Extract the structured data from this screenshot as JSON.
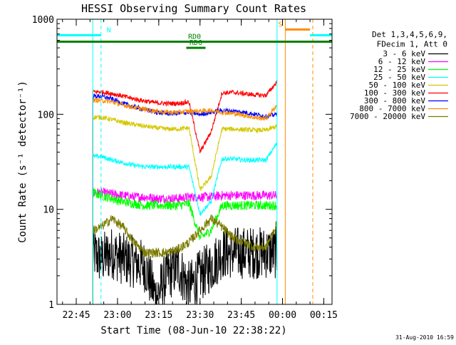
{
  "chart_data": {
    "type": "line",
    "title": "HESSI Observing Summary Count Rates",
    "xlabel": "Start Time (08-Jun-10 22:38:22)",
    "ylabel": "Count Rate (s⁻¹ detector⁻¹)",
    "yscale": "log",
    "ylim": [
      1,
      1000
    ],
    "xlim_minutes": [
      0,
      100
    ],
    "x_ticks": [
      {
        "label": "22:45",
        "minute": 7
      },
      {
        "label": "23:00",
        "minute": 22
      },
      {
        "label": "23:15",
        "minute": 37
      },
      {
        "label": "23:30",
        "minute": 52
      },
      {
        "label": "23:45",
        "minute": 67
      },
      {
        "label": "00:00",
        "minute": 82
      },
      {
        "label": "00:15",
        "minute": 97
      }
    ],
    "y_ticks": [
      {
        "label": "1",
        "value": 1
      },
      {
        "label": "10",
        "value": 10
      },
      {
        "label": "100",
        "value": 100
      },
      {
        "label": "1000",
        "value": 1000
      }
    ],
    "legend": {
      "position": "right",
      "header": [
        "Det 1,3,4,5,6,9,",
        "FDecim 1, Att 0"
      ],
      "entries": [
        {
          "label": "3 - 6 keV",
          "color": "#000000"
        },
        {
          "label": "6 - 12 keV",
          "color": "#ff00ff"
        },
        {
          "label": "12 - 25 keV",
          "color": "#00ff00"
        },
        {
          "label": "25 - 50 keV",
          "color": "#00ffff"
        },
        {
          "label": "50 - 100 keV",
          "color": "#d4c800"
        },
        {
          "label": "100 - 300 keV",
          "color": "#ff0000"
        },
        {
          "label": "300 - 800 keV",
          "color": "#0000ff"
        },
        {
          "label": "800 - 7000 keV",
          "color": "#ff8c00"
        },
        {
          "label": "7000 - 20000 keV",
          "color": "#7b7b00"
        }
      ]
    },
    "flag_bars": [
      {
        "label": "N",
        "color": "#00ffff",
        "value": 680,
        "segments": [
          [
            0,
            16
          ],
          [
            92,
            100
          ]
        ]
      },
      {
        "label": "S",
        "color": "#ff8c00",
        "value": 780,
        "segments": [
          [
            83,
            92
          ]
        ]
      },
      {
        "label": "RD0",
        "color": "#008000",
        "value": 580,
        "segments": [
          [
            0,
            100
          ]
        ]
      },
      {
        "label": "RD6",
        "color": "#008000",
        "value": 500,
        "segments": [
          [
            47,
            54
          ]
        ]
      }
    ],
    "vertical_markers": [
      {
        "minute": 13,
        "color": "#00ffff",
        "style": "solid"
      },
      {
        "minute": 16,
        "color": "#00ffff",
        "style": "dashed"
      },
      {
        "minute": 80,
        "color": "#00ffff",
        "style": "solid"
      },
      {
        "minute": 83,
        "color": "#ff8c00",
        "style": "solid"
      },
      {
        "minute": 93,
        "color": "#ff8c00",
        "style": "dashed"
      },
      {
        "minute": 100,
        "color": "#00ffff",
        "style": "dashed"
      }
    ],
    "series": [
      {
        "name": "3 - 6 keV",
        "color": "#000000",
        "x": [
          13,
          16,
          20,
          24,
          28,
          32,
          36,
          40,
          44,
          48,
          52,
          56,
          60,
          64,
          68,
          72,
          76,
          80
        ],
        "y": [
          3.5,
          3,
          3.5,
          3,
          2.8,
          2.5,
          1.2,
          2,
          2.5,
          1.5,
          2,
          2.5,
          3.5,
          3.5,
          3.5,
          3.5,
          3.5,
          3.5
        ]
      },
      {
        "name": "6 - 12 keV",
        "color": "#ff00ff",
        "x": [
          13,
          16,
          20,
          24,
          28,
          32,
          36,
          40,
          44,
          48,
          52,
          56,
          60,
          64,
          68,
          72,
          76,
          80
        ],
        "y": [
          15,
          15,
          14.5,
          14,
          13.5,
          13.5,
          13,
          13,
          13,
          13.5,
          13.5,
          13.5,
          14,
          14,
          14,
          14,
          14,
          14
        ]
      },
      {
        "name": "12 - 25 keV",
        "color": "#00ff00",
        "x": [
          13,
          16,
          20,
          24,
          28,
          32,
          36,
          40,
          44,
          48,
          52,
          56,
          60,
          64,
          68,
          72,
          76,
          80
        ],
        "y": [
          15,
          14,
          13,
          12,
          11.5,
          11,
          11,
          11,
          11,
          11.5,
          5,
          6,
          11,
          11,
          11,
          11,
          11,
          11
        ]
      },
      {
        "name": "25 - 50 keV",
        "color": "#00ffff",
        "x": [
          13,
          16,
          20,
          24,
          28,
          32,
          36,
          40,
          44,
          48,
          52,
          56,
          60,
          64,
          68,
          72,
          76,
          80
        ],
        "y": [
          36,
          36,
          33,
          31,
          29,
          28,
          28,
          28,
          28,
          28,
          9,
          12,
          34,
          34,
          33,
          33,
          33,
          50
        ]
      },
      {
        "name": "50 - 100 keV",
        "color": "#d4c800",
        "x": [
          13,
          16,
          20,
          24,
          28,
          32,
          36,
          40,
          44,
          48,
          52,
          56,
          60,
          64,
          68,
          72,
          76,
          80
        ],
        "y": [
          93,
          93,
          88,
          82,
          78,
          75,
          72,
          70,
          70,
          72,
          16,
          22,
          70,
          70,
          69,
          68,
          68,
          75
        ]
      },
      {
        "name": "100 - 300 keV",
        "color": "#ff0000",
        "x": [
          13,
          16,
          20,
          24,
          28,
          32,
          36,
          40,
          44,
          48,
          52,
          56,
          60,
          64,
          68,
          72,
          76,
          80
        ],
        "y": [
          172,
          172,
          165,
          155,
          145,
          138,
          132,
          130,
          130,
          135,
          40,
          65,
          168,
          170,
          165,
          160,
          158,
          220
        ]
      },
      {
        "name": "300 - 800 keV",
        "color": "#0000ff",
        "x": [
          13,
          16,
          20,
          24,
          28,
          32,
          36,
          40,
          44,
          48,
          52,
          56,
          60,
          64,
          68,
          72,
          76,
          80
        ],
        "y": [
          155,
          155,
          145,
          130,
          120,
          112,
          105,
          102,
          102,
          105,
          100,
          105,
          110,
          108,
          105,
          100,
          95,
          100
        ]
      },
      {
        "name": "800 - 7000 keV",
        "color": "#ff8c00",
        "x": [
          13,
          16,
          20,
          24,
          28,
          32,
          36,
          40,
          44,
          48,
          52,
          56,
          60,
          64,
          68,
          72,
          76,
          80
        ],
        "y": [
          140,
          140,
          135,
          125,
          118,
          113,
          108,
          105,
          105,
          108,
          108,
          110,
          105,
          102,
          98,
          92,
          90,
          125
        ]
      },
      {
        "name": "7000 - 20000 keV",
        "color": "#7b7b00",
        "x": [
          13,
          16,
          20,
          24,
          28,
          32,
          36,
          40,
          44,
          48,
          52,
          56,
          60,
          64,
          68,
          72,
          76,
          80
        ],
        "y": [
          6,
          6.5,
          8,
          6.5,
          4.5,
          3.5,
          3.5,
          3.5,
          3.8,
          4.5,
          6,
          8,
          6.5,
          5,
          4.5,
          4,
          4,
          7
        ]
      }
    ]
  },
  "footer": {
    "timestamp": "31-Aug-2010 16:59"
  }
}
